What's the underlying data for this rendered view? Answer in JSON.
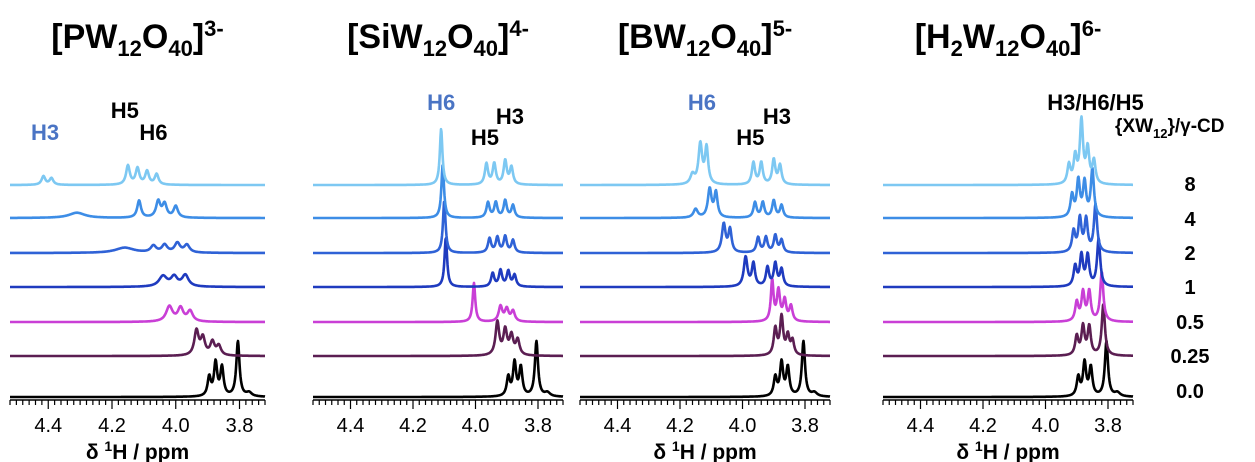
{
  "chart_data": [
    {
      "type": "line",
      "title": {
        "pre": "[PW",
        "sub1": "12",
        "mid": "O",
        "sub2": "40",
        "post": "]",
        "sup": "3-"
      },
      "xlabel": {
        "pre": "δ ",
        "sup": "1",
        "post": "H / ppm"
      },
      "xlim": [
        4.52,
        3.72
      ],
      "xticks": [
        "4.4",
        "4.2",
        "4.0",
        "3.8"
      ],
      "peak_labels": [
        {
          "text": "H3",
          "ppm": 4.41,
          "color": "#4a74c4"
        },
        {
          "text": "H5",
          "ppm": 4.16,
          "color": "#000000"
        },
        {
          "text": "H6",
          "ppm": 4.07,
          "color": "#000000"
        }
      ],
      "series": [
        {
          "ratio": "0.0",
          "color": "#000000",
          "peaks": [
            [
              3.805,
              5.8,
              0.006
            ],
            [
              3.855,
              3.0,
              0.006
            ],
            [
              3.875,
              3.5,
              0.006
            ],
            [
              3.895,
              2.0,
              0.006
            ],
            [
              3.77,
              0.4,
              0.01
            ]
          ]
        },
        {
          "ratio": "0.25",
          "color": "#5b1e52",
          "peaks": [
            [
              3.935,
              2.6,
              0.008
            ],
            [
              3.915,
              1.8,
              0.008
            ],
            [
              3.885,
              1.4,
              0.008
            ],
            [
              3.865,
              1.0,
              0.008
            ]
          ]
        },
        {
          "ratio": "0.5",
          "color": "#c93fd6",
          "peaks": [
            [
              4.02,
              1.6,
              0.012
            ],
            [
              3.985,
              1.4,
              0.01
            ],
            [
              3.955,
              1.1,
              0.01
            ]
          ]
        },
        {
          "ratio": "1",
          "color": "#1f3bbf",
          "peaks": [
            [
              4.04,
              1.1,
              0.015
            ],
            [
              4.005,
              1.0,
              0.012
            ],
            [
              3.97,
              1.2,
              0.012
            ]
          ]
        },
        {
          "ratio": "2",
          "color": "#2f62d6",
          "peaks": [
            [
              4.16,
              0.55,
              0.035
            ],
            [
              4.07,
              0.7,
              0.01
            ],
            [
              4.035,
              0.8,
              0.01
            ],
            [
              3.995,
              1.0,
              0.01
            ],
            [
              3.965,
              0.8,
              0.01
            ]
          ]
        },
        {
          "ratio": "4",
          "color": "#3d8de6",
          "peaks": [
            [
              4.31,
              0.55,
              0.03
            ],
            [
              4.115,
              1.8,
              0.007
            ],
            [
              4.055,
              1.7,
              0.008
            ],
            [
              4.035,
              1.4,
              0.008
            ],
            [
              4.0,
              1.2,
              0.008
            ]
          ]
        },
        {
          "ratio": "8",
          "color": "#7dc8f2",
          "peaks": [
            [
              4.415,
              0.9,
              0.007
            ],
            [
              4.39,
              0.7,
              0.007
            ],
            [
              4.15,
              2.0,
              0.007
            ],
            [
              4.12,
              1.7,
              0.007
            ],
            [
              4.09,
              1.4,
              0.007
            ],
            [
              4.06,
              1.1,
              0.007
            ]
          ]
        }
      ]
    },
    {
      "type": "line",
      "title": {
        "pre": "[SiW",
        "sub1": "12",
        "mid": "O",
        "sub2": "40",
        "post": "]",
        "sup": "4-"
      },
      "xlabel": {
        "pre": "",
        "sup": "",
        "post": ""
      },
      "xlim": [
        4.52,
        3.72
      ],
      "xticks": [
        "4.4",
        "4.2",
        "4.0",
        "3.8"
      ],
      "peak_labels": [
        {
          "text": "H6",
          "ppm": 4.11,
          "color": "#4a74c4"
        },
        {
          "text": "H5",
          "ppm": 3.97,
          "color": "#000000"
        },
        {
          "text": "H3",
          "ppm": 3.89,
          "color": "#000000"
        }
      ],
      "series": [
        {
          "ratio": "0.0",
          "color": "#000000",
          "peaks": [
            [
              3.805,
              5.8,
              0.006
            ],
            [
              3.855,
              3.0,
              0.006
            ],
            [
              3.875,
              3.5,
              0.006
            ],
            [
              3.895,
              2.0,
              0.006
            ],
            [
              3.77,
              0.4,
              0.01
            ]
          ]
        },
        {
          "ratio": "0.25",
          "color": "#5b1e52",
          "peaks": [
            [
              3.93,
              3.5,
              0.007
            ],
            [
              3.905,
              2.6,
              0.007
            ],
            [
              3.885,
              2.0,
              0.007
            ],
            [
              3.865,
              1.6,
              0.007
            ]
          ]
        },
        {
          "ratio": "0.5",
          "color": "#c93fd6",
          "peaks": [
            [
              4.005,
              4.1,
              0.005
            ],
            [
              3.92,
              1.6,
              0.007
            ],
            [
              3.9,
              1.3,
              0.007
            ],
            [
              3.88,
              1.1,
              0.007
            ]
          ]
        },
        {
          "ratio": "1",
          "color": "#1f3bbf",
          "peaks": [
            [
              4.095,
              5.2,
              0.005
            ],
            [
              3.945,
              1.4,
              0.006
            ],
            [
              3.92,
              1.7,
              0.006
            ],
            [
              3.895,
              1.6,
              0.006
            ],
            [
              3.875,
              1.2,
              0.006
            ]
          ]
        },
        {
          "ratio": "2",
          "color": "#2f62d6",
          "peaks": [
            [
              4.1,
              5.5,
              0.005
            ],
            [
              3.955,
              1.5,
              0.006
            ],
            [
              3.93,
              1.6,
              0.006
            ],
            [
              3.905,
              1.7,
              0.006
            ],
            [
              3.88,
              1.3,
              0.006
            ]
          ]
        },
        {
          "ratio": "4",
          "color": "#3d8de6",
          "peaks": [
            [
              4.105,
              5.6,
              0.005
            ],
            [
              3.96,
              1.6,
              0.006
            ],
            [
              3.935,
              1.6,
              0.006
            ],
            [
              3.905,
              1.8,
              0.006
            ],
            [
              3.88,
              1.3,
              0.006
            ]
          ]
        },
        {
          "ratio": "8",
          "color": "#7dc8f2",
          "peaks": [
            [
              4.11,
              5.9,
              0.005
            ],
            [
              3.965,
              2.2,
              0.006
            ],
            [
              3.94,
              2.2,
              0.006
            ],
            [
              3.905,
              2.5,
              0.006
            ],
            [
              3.885,
              1.8,
              0.006
            ]
          ]
        }
      ]
    },
    {
      "type": "line",
      "title": {
        "pre": "[BW",
        "sub1": "12",
        "mid": "O",
        "sub2": "40",
        "post": "]",
        "sup": "5-"
      },
      "xlabel": {
        "pre": "δ ",
        "sup": "1",
        "post": "H / ppm"
      },
      "xlim": [
        4.52,
        3.72
      ],
      "xticks": [
        "4.4",
        "4.2",
        "4.0",
        "3.8"
      ],
      "peak_labels": [
        {
          "text": "H6",
          "ppm": 4.13,
          "color": "#4a74c4"
        },
        {
          "text": "H5",
          "ppm": 3.975,
          "color": "#000000"
        },
        {
          "text": "H3",
          "ppm": 3.89,
          "color": "#000000"
        }
      ],
      "series": [
        {
          "ratio": "0.0",
          "color": "#000000",
          "peaks": [
            [
              3.805,
              5.8,
              0.006
            ],
            [
              3.855,
              3.0,
              0.006
            ],
            [
              3.875,
              3.5,
              0.006
            ],
            [
              3.895,
              2.0,
              0.006
            ],
            [
              3.77,
              0.4,
              0.01
            ]
          ]
        },
        {
          "ratio": "0.25",
          "color": "#5b1e52",
          "peaks": [
            [
              3.875,
              4.0,
              0.006
            ],
            [
              3.895,
              2.8,
              0.006
            ],
            [
              3.855,
              2.0,
              0.006
            ],
            [
              3.84,
              1.5,
              0.006
            ]
          ]
        },
        {
          "ratio": "0.5",
          "color": "#c93fd6",
          "peaks": [
            [
              3.905,
              4.3,
              0.005
            ],
            [
              3.885,
              3.2,
              0.006
            ],
            [
              3.865,
              2.2,
              0.006
            ],
            [
              3.845,
              1.6,
              0.006
            ]
          ]
        },
        {
          "ratio": "1",
          "color": "#1f3bbf",
          "peaks": [
            [
              3.99,
              3.1,
              0.007
            ],
            [
              3.965,
              2.4,
              0.006
            ],
            [
              3.92,
              2.0,
              0.006
            ],
            [
              3.895,
              2.4,
              0.006
            ],
            [
              3.875,
              1.8,
              0.006
            ]
          ]
        },
        {
          "ratio": "2",
          "color": "#2f62d6",
          "peaks": [
            [
              4.06,
              3.0,
              0.007
            ],
            [
              4.04,
              2.4,
              0.006
            ],
            [
              3.95,
              1.6,
              0.006
            ],
            [
              3.925,
              1.6,
              0.006
            ],
            [
              3.895,
              1.8,
              0.006
            ],
            [
              3.875,
              1.3,
              0.006
            ]
          ]
        },
        {
          "ratio": "4",
          "color": "#3d8de6",
          "peaks": [
            [
              4.105,
              3.0,
              0.007
            ],
            [
              4.085,
              2.6,
              0.006
            ],
            [
              4.15,
              0.9,
              0.008
            ],
            [
              3.96,
              1.6,
              0.006
            ],
            [
              3.935,
              1.6,
              0.006
            ],
            [
              3.9,
              1.8,
              0.006
            ],
            [
              3.875,
              1.3,
              0.006
            ]
          ]
        },
        {
          "ratio": "8",
          "color": "#7dc8f2",
          "peaks": [
            [
              4.135,
              4.2,
              0.007
            ],
            [
              4.115,
              3.8,
              0.006
            ],
            [
              4.16,
              1.0,
              0.008
            ],
            [
              3.965,
              2.3,
              0.006
            ],
            [
              3.94,
              2.3,
              0.006
            ],
            [
              3.9,
              2.6,
              0.006
            ],
            [
              3.88,
              2.0,
              0.006
            ]
          ]
        }
      ]
    },
    {
      "type": "line",
      "title": {
        "pre": "[H",
        "sub1": "2",
        "mid": "W",
        "sub2": "12",
        "post": "O",
        "sub3": "40",
        "post2": "]",
        "sup": "6-"
      },
      "xlabel": {
        "pre": "δ ",
        "sup": "1",
        "post": "H / ppm"
      },
      "xlim": [
        4.52,
        3.72
      ],
      "xticks": [
        "4.4",
        "4.2",
        "4.0",
        "3.8"
      ],
      "peak_labels": [
        {
          "text": "H3/H6/H5",
          "ppm": 3.84,
          "color": "#000000"
        }
      ],
      "series": [
        {
          "ratio": "0.0",
          "color": "#000000",
          "peaks": [
            [
              3.805,
              5.8,
              0.006
            ],
            [
              3.855,
              3.0,
              0.006
            ],
            [
              3.875,
              3.5,
              0.006
            ],
            [
              3.895,
              2.0,
              0.006
            ],
            [
              3.77,
              0.4,
              0.01
            ]
          ]
        },
        {
          "ratio": "0.25",
          "color": "#5b1e52",
          "peaks": [
            [
              3.815,
              5.4,
              0.006
            ],
            [
              3.86,
              3.0,
              0.006
            ],
            [
              3.88,
              3.0,
              0.006
            ],
            [
              3.9,
              2.0,
              0.006
            ]
          ]
        },
        {
          "ratio": "0.5",
          "color": "#c93fd6",
          "peaks": [
            [
              3.82,
              5.2,
              0.006
            ],
            [
              3.86,
              3.1,
              0.006
            ],
            [
              3.88,
              3.0,
              0.006
            ],
            [
              3.9,
              2.0,
              0.006
            ]
          ]
        },
        {
          "ratio": "1",
          "color": "#1f3bbf",
          "peaks": [
            [
              3.83,
              5.0,
              0.006
            ],
            [
              3.865,
              3.2,
              0.006
            ],
            [
              3.885,
              3.2,
              0.006
            ],
            [
              3.905,
              2.1,
              0.006
            ]
          ]
        },
        {
          "ratio": "2",
          "color": "#2f62d6",
          "peaks": [
            [
              3.84,
              5.0,
              0.006
            ],
            [
              3.87,
              3.4,
              0.006
            ],
            [
              3.89,
              3.5,
              0.006
            ],
            [
              3.91,
              2.2,
              0.006
            ]
          ]
        },
        {
          "ratio": "4",
          "color": "#3d8de6",
          "peaks": [
            [
              3.85,
              5.0,
              0.006
            ],
            [
              3.875,
              3.6,
              0.006
            ],
            [
              3.895,
              3.8,
              0.006
            ],
            [
              3.915,
              2.3,
              0.006
            ]
          ]
        },
        {
          "ratio": "8",
          "color": "#7dc8f2",
          "peaks": [
            [
              3.885,
              6.6,
              0.006
            ],
            [
              3.865,
              3.6,
              0.006
            ],
            [
              3.905,
              2.8,
              0.006
            ],
            [
              3.925,
              2.0,
              0.006
            ],
            [
              3.845,
              2.4,
              0.006
            ]
          ]
        }
      ]
    }
  ],
  "ratio_legend": {
    "header": {
      "pre": "{XW",
      "sub": "12",
      "post": "}/γ-CD"
    },
    "values": [
      "8",
      "4",
      "2",
      "1",
      "0.5",
      "0.25",
      "0.0"
    ]
  }
}
